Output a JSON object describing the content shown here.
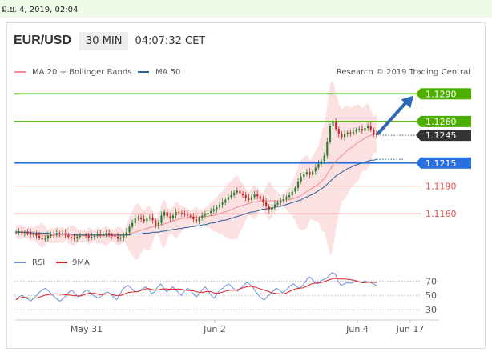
{
  "header": {
    "timestamp": "มิ.ย. 4, 2019, 02:04",
    "symbol": "EUR/USD",
    "interval": "30 MIN",
    "time": "04:07:32 CET"
  },
  "legend": {
    "ma20": "MA 20 + Bollinger Bands",
    "ma50": "MA 50",
    "credit": "Research © 2019 Trading Central",
    "rsi": "RSI",
    "ma9": "9MA"
  },
  "colors": {
    "resistance": "#4caf00",
    "support": "#2a6fe0",
    "minor": "#e84d4d",
    "last": "#333333",
    "arrow": "#2f68b8",
    "ma20": "#f08c8c",
    "ma50": "#2b5e9e",
    "bollinger": "#fbe1e1",
    "candle_up": "#2e7d32",
    "candle_down": "#c62828",
    "rsi": "#6a8fdc",
    "ma9": "#e02020"
  },
  "chart_data": [
    {
      "type": "candlestick",
      "y_range": [
        1.1135,
        1.1305
      ],
      "x_labels": [
        "May 31",
        "Jun 2",
        "Jun 4",
        "Jun 17"
      ],
      "levels": [
        {
          "value": 1.129,
          "label": "1.1290",
          "kind": "resistance"
        },
        {
          "value": 1.126,
          "label": "1.1260",
          "kind": "resistance"
        },
        {
          "value": 1.1245,
          "label": "1.1245",
          "kind": "last"
        },
        {
          "value": 1.1215,
          "label": "1.1215",
          "kind": "support"
        },
        {
          "value": 1.119,
          "label": "1.1190",
          "kind": "minor"
        },
        {
          "value": 1.116,
          "label": "1.1160",
          "kind": "minor"
        }
      ],
      "close": [
        1.114,
        1.1141,
        1.1139,
        1.114,
        1.1139,
        1.1137,
        1.1138,
        1.1136,
        1.1134,
        1.1132,
        1.1133,
        1.1136,
        1.1138,
        1.1137,
        1.1139,
        1.1138,
        1.1139,
        1.1137,
        1.1135,
        1.1134,
        1.1133,
        1.1135,
        1.1136,
        1.1137,
        1.1136,
        1.1134,
        1.1135,
        1.1136,
        1.1138,
        1.1137,
        1.1138,
        1.1139,
        1.1137,
        1.1136,
        1.1135,
        1.1133,
        1.1134,
        1.1136,
        1.114,
        1.1146,
        1.115,
        1.1155,
        1.1156,
        1.1154,
        1.1152,
        1.1155,
        1.1156,
        1.1153,
        1.1147,
        1.115,
        1.1158,
        1.1162,
        1.1157,
        1.1155,
        1.1158,
        1.1162,
        1.1161,
        1.116,
        1.1159,
        1.1158,
        1.1157,
        1.1154,
        1.1152,
        1.1155,
        1.1158,
        1.1159,
        1.1161,
        1.1163,
        1.1165,
        1.1167,
        1.117,
        1.1172,
        1.1175,
        1.1178,
        1.118,
        1.1183,
        1.1185,
        1.1182,
        1.118,
        1.1177,
        1.1175,
        1.1178,
        1.1181,
        1.1179,
        1.1176,
        1.1172,
        1.1168,
        1.1164,
        1.1167,
        1.117,
        1.1172,
        1.1174,
        1.1176,
        1.1178,
        1.118,
        1.1184,
        1.1188,
        1.1195,
        1.12,
        1.1203,
        1.1205,
        1.1202,
        1.1206,
        1.121,
        1.1214,
        1.1217,
        1.1223,
        1.1238,
        1.1255,
        1.1259,
        1.1252,
        1.1246,
        1.1243,
        1.1246,
        1.1248,
        1.1247,
        1.1249,
        1.1251,
        1.1252,
        1.125,
        1.1253,
        1.1255,
        1.1251,
        1.1247,
        1.1245
      ],
      "ma20": [
        1.1141,
        1.114,
        1.114,
        1.114,
        1.1139,
        1.1139,
        1.1138,
        1.1138,
        1.1137,
        1.1137,
        1.1136,
        1.1136,
        1.1136,
        1.1136,
        1.1137,
        1.1137,
        1.1137,
        1.1137,
        1.1137,
        1.1137,
        1.1136,
        1.1136,
        1.1136,
        1.1136,
        1.1136,
        1.1136,
        1.1136,
        1.1136,
        1.1136,
        1.1136,
        1.1136,
        1.1136,
        1.1136,
        1.1136,
        1.1136,
        1.1136,
        1.1136,
        1.1136,
        1.1137,
        1.1138,
        1.1139,
        1.114,
        1.1141,
        1.1142,
        1.1143,
        1.1144,
        1.1145,
        1.1146,
        1.1146,
        1.1147,
        1.1148,
        1.1149,
        1.115,
        1.1151,
        1.1152,
        1.1153,
        1.1154,
        1.1155,
        1.1155,
        1.1156,
        1.1156,
        1.1156,
        1.1156,
        1.1156,
        1.1157,
        1.1157,
        1.1157,
        1.1158,
        1.1158,
        1.1159,
        1.116,
        1.1161,
        1.1162,
        1.1163,
        1.1164,
        1.1166,
        1.1167,
        1.1168,
        1.1169,
        1.117,
        1.1171,
        1.1172,
        1.1173,
        1.1173,
        1.1174,
        1.1174,
        1.1174,
        1.1174,
        1.1174,
        1.1174,
        1.1174,
        1.1174,
        1.1175,
        1.1175,
        1.1175,
        1.1176,
        1.1177,
        1.1178,
        1.118,
        1.1182,
        1.1184,
        1.1186,
        1.1188,
        1.119,
        1.1192,
        1.1195,
        1.1198,
        1.1203,
        1.1208,
        1.1213,
        1.1217,
        1.122,
        1.1223,
        1.1226,
        1.1229,
        1.1231,
        1.1233,
        1.1236,
        1.1238,
        1.124,
        1.1242,
        1.1244,
        1.1245,
        1.1246,
        1.1247
      ],
      "ma50": [
        1.114,
        1.114,
        1.114,
        1.114,
        1.114,
        1.114,
        1.1139,
        1.1139,
        1.1139,
        1.1139,
        1.1139,
        1.1139,
        1.1138,
        1.1138,
        1.1138,
        1.1138,
        1.1138,
        1.1138,
        1.1138,
        1.1138,
        1.1137,
        1.1137,
        1.1137,
        1.1137,
        1.1137,
        1.1137,
        1.1137,
        1.1137,
        1.1137,
        1.1137,
        1.1137,
        1.1137,
        1.1137,
        1.1137,
        1.1137,
        1.1137,
        1.1137,
        1.1137,
        1.1137,
        1.1137,
        1.1138,
        1.1138,
        1.1138,
        1.1138,
        1.1139,
        1.1139,
        1.1139,
        1.114,
        1.114,
        1.114,
        1.1141,
        1.1141,
        1.1142,
        1.1142,
        1.1143,
        1.1143,
        1.1144,
        1.1144,
        1.1145,
        1.1145,
        1.1146,
        1.1146,
        1.1147,
        1.1147,
        1.1148,
        1.1148,
        1.1149,
        1.115,
        1.115,
        1.1151,
        1.1152,
        1.1153,
        1.1153,
        1.1154,
        1.1155,
        1.1156,
        1.1157,
        1.1158,
        1.1159,
        1.116,
        1.1161,
        1.1162,
        1.1162,
        1.1163,
        1.1164,
        1.1165,
        1.1165,
        1.1166,
        1.1166,
        1.1167,
        1.1168,
        1.1168,
        1.1169,
        1.117,
        1.1171,
        1.1172,
        1.1173,
        1.1174,
        1.1175,
        1.1177,
        1.1178,
        1.118,
        1.1181,
        1.1183,
        1.1185,
        1.1187,
        1.1189,
        1.1192,
        1.1195,
        1.1198,
        1.1201,
        1.1203,
        1.1205,
        1.1207,
        1.1209,
        1.121,
        1.1212,
        1.1213,
        1.1214,
        1.1215,
        1.1216,
        1.1217,
        1.1218,
        1.1218,
        1.1219
      ]
    },
    {
      "type": "line",
      "name": "RSI",
      "y_range": [
        20,
        85
      ],
      "ticks": [
        70,
        50,
        30
      ],
      "rsi": [
        44,
        48,
        50,
        47,
        45,
        42,
        46,
        50,
        55,
        58,
        60,
        56,
        52,
        48,
        44,
        42,
        46,
        50,
        55,
        57,
        52,
        48,
        50,
        55,
        58,
        54,
        50,
        48,
        46,
        50,
        53,
        55,
        52,
        48,
        44,
        50,
        58,
        62,
        64,
        60,
        56,
        55,
        57,
        60,
        62,
        58,
        52,
        56,
        62,
        66,
        60,
        55,
        58,
        62,
        58,
        54,
        50,
        56,
        60,
        58,
        52,
        48,
        52,
        58,
        62,
        56,
        50,
        46,
        52,
        58,
        60,
        64,
        66,
        62,
        58,
        56,
        60,
        64,
        68,
        66,
        62,
        56,
        50,
        46,
        44,
        48,
        52,
        56,
        60,
        58,
        54,
        56,
        60,
        64,
        66,
        62,
        60,
        64,
        70,
        76,
        74,
        68,
        66,
        70,
        72,
        74,
        78,
        82,
        80,
        70,
        64,
        66,
        68,
        67,
        68,
        70,
        69,
        68,
        70,
        69,
        68,
        66,
        64
      ]
    }
  ]
}
